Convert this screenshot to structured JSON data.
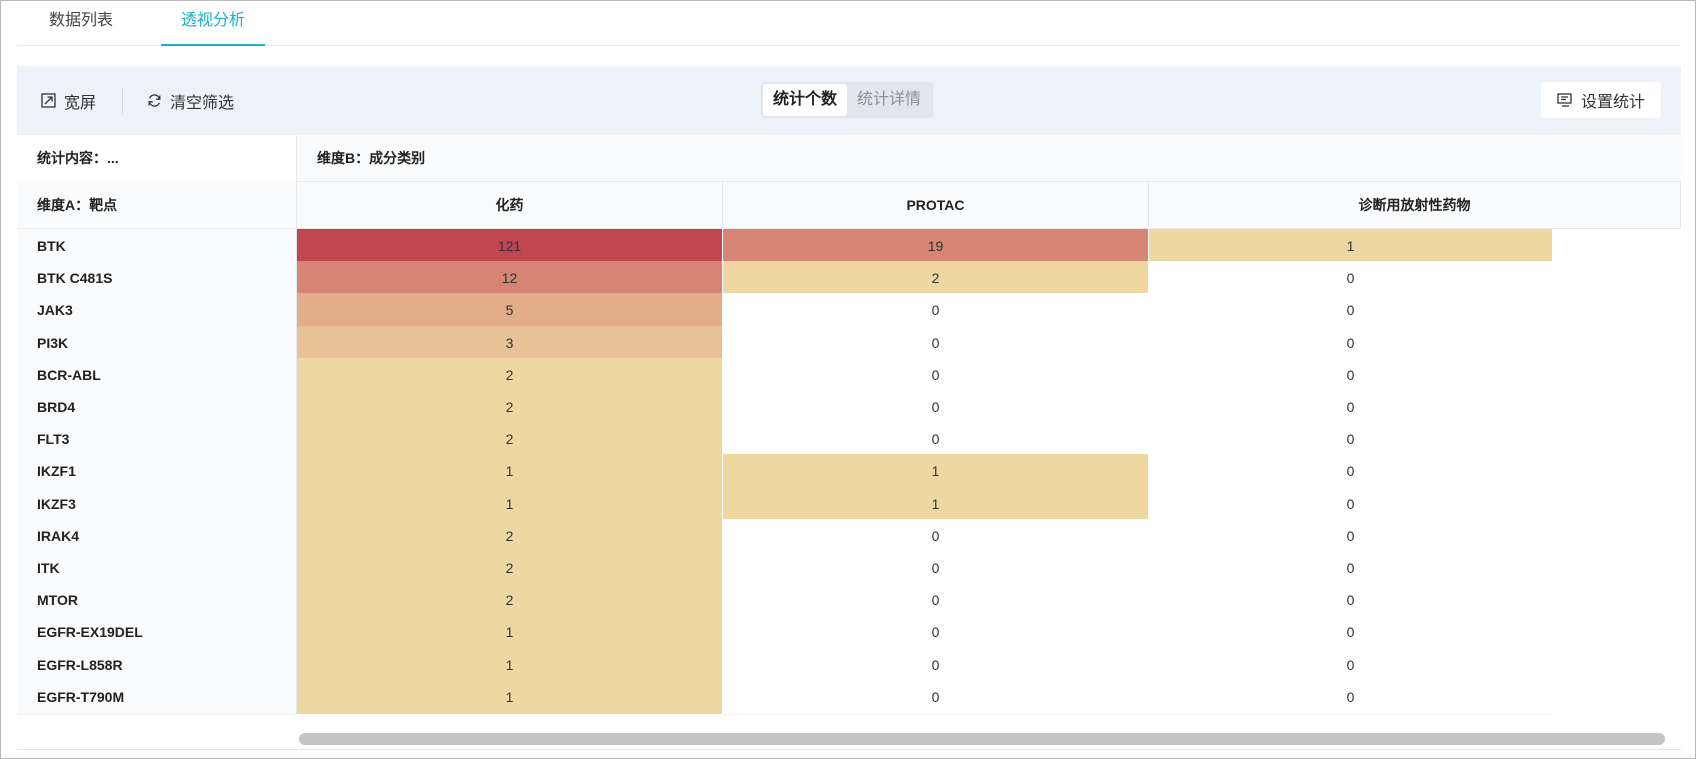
{
  "tabs": [
    {
      "label": "数据列表",
      "active": false
    },
    {
      "label": "透视分析",
      "active": true
    }
  ],
  "accent_color": "#1ab0c8",
  "toolbar": {
    "wide_label": "宽屏",
    "wide_icon": "expand-icon",
    "clear_label": "清空筛选",
    "clear_icon": "refresh-icon",
    "segments": [
      {
        "label": "统计个数",
        "active": true
      },
      {
        "label": "统计详情",
        "active": false
      }
    ],
    "settings_label": "设置统计",
    "settings_icon": "settings-icon"
  },
  "table": {
    "stat_label": "统计内容：...",
    "dim_b_label": "维度B：成分类别",
    "dim_a_label": "维度A：靶点",
    "columns": [
      "化药",
      "PROTAC",
      "诊断用放射性药物"
    ],
    "rows": [
      {
        "label": "BTK",
        "values": [
          "121",
          "19",
          "1"
        ]
      },
      {
        "label": "BTK C481S",
        "values": [
          "12",
          "2",
          "0"
        ]
      },
      {
        "label": "JAK3",
        "values": [
          "5",
          "0",
          "0"
        ]
      },
      {
        "label": "PI3K",
        "values": [
          "3",
          "0",
          "0"
        ]
      },
      {
        "label": "BCR-ABL",
        "values": [
          "2",
          "0",
          "0"
        ]
      },
      {
        "label": "BRD4",
        "values": [
          "2",
          "0",
          "0"
        ]
      },
      {
        "label": "FLT3",
        "values": [
          "2",
          "0",
          "0"
        ]
      },
      {
        "label": "IKZF1",
        "values": [
          "1",
          "1",
          "0"
        ]
      },
      {
        "label": "IKZF3",
        "values": [
          "1",
          "1",
          "0"
        ]
      },
      {
        "label": "IRAK4",
        "values": [
          "2",
          "0",
          "0"
        ]
      },
      {
        "label": "ITK",
        "values": [
          "2",
          "0",
          "0"
        ]
      },
      {
        "label": "MTOR",
        "values": [
          "2",
          "0",
          "0"
        ]
      },
      {
        "label": "EGFR-EX19DEL",
        "values": [
          "1",
          "0",
          "0"
        ]
      },
      {
        "label": "EGFR-L858R",
        "values": [
          "1",
          "0",
          "0"
        ]
      },
      {
        "label": "EGFR-T790M",
        "values": [
          "1",
          "0",
          "0"
        ]
      }
    ],
    "heat_colors": {
      "zero": "#ffffff",
      "low": "#efd7a2",
      "mid3": "#e8c296",
      "mid5": "#e3ad8a",
      "high": "#d68474",
      "max": "#c0474f"
    }
  }
}
